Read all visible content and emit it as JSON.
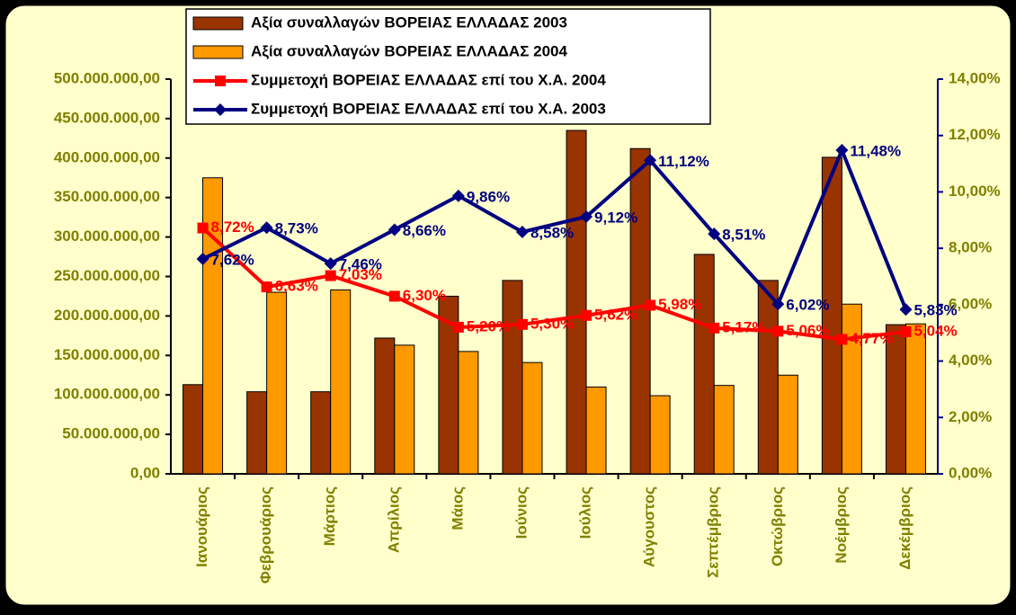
{
  "chart_data": {
    "type": "bar-line",
    "categories": [
      "Ιανουάριος",
      "Φεβρουάριος",
      "Μάρτιος",
      "Απρίλιος",
      "Μάιος",
      "Ιούνιος",
      "Ιούλιος",
      "Αύγουστος",
      "Σεπτέμβριος",
      "Οκτώβριος",
      "Νοέμβριος",
      "Δεκέμβριος"
    ],
    "series": [
      {
        "name": "Αξία συναλλαγών  ΒΟΡΕΙΑΣ ΕΛΛΑΔΑΣ 2003",
        "type": "bar",
        "color": "#993300",
        "values": [
          113000000,
          104000000,
          104000000,
          172000000,
          225000000,
          245000000,
          435000000,
          412000000,
          278000000,
          245000000,
          401000000,
          189000000
        ]
      },
      {
        "name": "Αξία συναλλαγών ΒΟΡΕΙΑΣ ΕΛΛΑΔΑΣ 2004",
        "type": "bar",
        "color": "#FF9900",
        "values": [
          375000000,
          230000000,
          233000000,
          163000000,
          155000000,
          141000000,
          110000000,
          99000000,
          112000000,
          125000000,
          215000000,
          190000000
        ]
      },
      {
        "name": "Συμμετοχή ΒΟΡΕΙΑΣ ΕΛΛΑΔΑΣ επί του Χ.Α. 2004",
        "type": "line",
        "axis": "y2",
        "color": "#FF0000",
        "marker": "square",
        "values": [
          8.72,
          6.63,
          7.03,
          6.3,
          5.2,
          5.3,
          5.62,
          5.98,
          5.17,
          5.06,
          4.77,
          5.04
        ],
        "value_labels": [
          "8,72%",
          "6,63%",
          "7,03%",
          "6,30%",
          "5,20%",
          "5,30%",
          "5,62%",
          "5,98%",
          "5,17%",
          "5,06%",
          "4,77%",
          "5,04%"
        ]
      },
      {
        "name": "Συμμετοχή ΒΟΡΕΙΑΣ ΕΛΛΑΔΑΣ επί του Χ.Α. 2003",
        "type": "line",
        "axis": "y2",
        "color": "#000080",
        "marker": "diamond",
        "values": [
          7.62,
          8.73,
          7.46,
          8.66,
          9.86,
          8.58,
          9.12,
          11.12,
          8.51,
          6.02,
          11.48,
          5.83
        ],
        "value_labels": [
          "7,62%",
          "8,73%",
          "7,46%",
          "8,66%",
          "9,86%",
          "8,58%",
          "9,12%",
          "11,12%",
          "8,51%",
          "6,02%",
          "11,48%",
          "5,83%"
        ]
      }
    ],
    "ylim": [
      0,
      500000000
    ],
    "yticks": [
      {
        "value": 0,
        "label": "0,00"
      },
      {
        "value": 50000000,
        "label": "50.000.000,00"
      },
      {
        "value": 100000000,
        "label": "100.000.000,00"
      },
      {
        "value": 150000000,
        "label": "150.000.000,00"
      },
      {
        "value": 200000000,
        "label": "200.000.000,00"
      },
      {
        "value": 250000000,
        "label": "250.000.000,00"
      },
      {
        "value": 300000000,
        "label": "300.000.000,00"
      },
      {
        "value": 350000000,
        "label": "350.000.000,00"
      },
      {
        "value": 400000000,
        "label": "400.000.000,00"
      },
      {
        "value": 450000000,
        "label": "450.000.000,00"
      },
      {
        "value": 500000000,
        "label": "500.000.000,00"
      }
    ],
    "y2lim": [
      0,
      14
    ],
    "y2ticks": [
      {
        "value": 0,
        "label": "0,00%"
      },
      {
        "value": 2,
        "label": "2,00%"
      },
      {
        "value": 4,
        "label": "4,00%"
      },
      {
        "value": 6,
        "label": "6,00%"
      },
      {
        "value": 8,
        "label": "8,00%"
      },
      {
        "value": 10,
        "label": "10,00%"
      },
      {
        "value": 12,
        "label": "12,00%"
      },
      {
        "value": 14,
        "label": "14,00%"
      }
    ],
    "legend": "top",
    "grid": false
  }
}
